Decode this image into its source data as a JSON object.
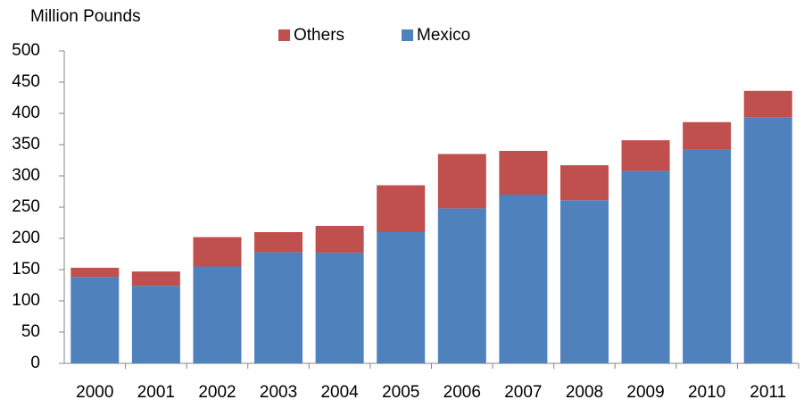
{
  "chart_data": {
    "type": "stacked_bar",
    "y_axis_label": "Million Pounds",
    "categories": [
      "2000",
      "2001",
      "2002",
      "2003",
      "2004",
      "2005",
      "2006",
      "2007",
      "2008",
      "2009",
      "2010",
      "2011"
    ],
    "series": [
      {
        "name": "Others",
        "color": "#c0504d",
        "values": [
          15,
          23,
          47,
          32,
          43,
          75,
          87,
          70,
          56,
          49,
          44,
          42
        ]
      },
      {
        "name": "Mexico",
        "color": "#4f81bd",
        "values": [
          138,
          124,
          155,
          178,
          177,
          210,
          248,
          270,
          261,
          308,
          342,
          394
        ]
      }
    ],
    "ylim": [
      0,
      500
    ],
    "yticks": [
      0,
      50,
      100,
      150,
      200,
      250,
      300,
      350,
      400,
      450,
      500
    ],
    "grid": false,
    "legend": "top"
  }
}
